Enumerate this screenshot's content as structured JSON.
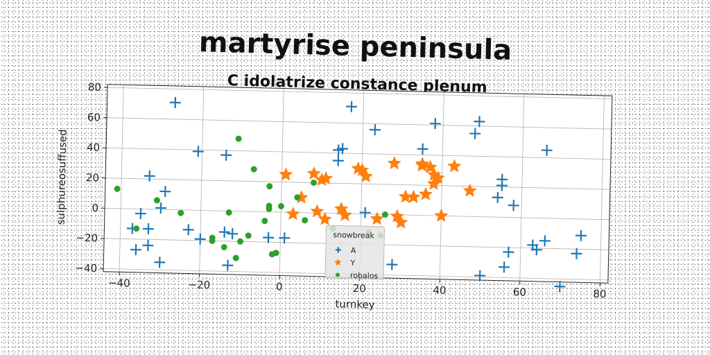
{
  "chart_data": {
    "type": "scatter",
    "title": "martyrise peninsula",
    "subtitle": "C idolatrize constance plenum",
    "xlabel": "turnkey",
    "ylabel": "sulphureosuffused",
    "xlim": [
      -44,
      82
    ],
    "ylim": [
      -42,
      82
    ],
    "xticks": [
      -40,
      -20,
      0,
      20,
      40,
      60,
      80
    ],
    "yticks": [
      -40,
      -20,
      0,
      20,
      40,
      60,
      80
    ],
    "grid": true,
    "legend": {
      "title": "snowbreak",
      "position": "lower-center"
    },
    "series": [
      {
        "name": "A",
        "marker": "plus",
        "color": "#1f77b4",
        "points": [
          [
            -27,
            71
          ],
          [
            -21,
            39
          ],
          [
            -14,
            37
          ],
          [
            -33,
            22
          ],
          [
            -29,
            12
          ],
          [
            -30,
            1
          ],
          [
            -35,
            -3
          ],
          [
            -33,
            -13
          ],
          [
            -37,
            -13
          ],
          [
            -33,
            -24
          ],
          [
            -36,
            -27
          ],
          [
            -30,
            -35
          ],
          [
            -23,
            -13
          ],
          [
            -20,
            -19
          ],
          [
            -14,
            -14
          ],
          [
            -12,
            -15
          ],
          [
            -13,
            -36
          ],
          [
            -3,
            -17
          ],
          [
            1,
            -17
          ],
          [
            14,
            42
          ],
          [
            15,
            43
          ],
          [
            14,
            35
          ],
          [
            17,
            71
          ],
          [
            21,
            1
          ],
          [
            23,
            56
          ],
          [
            28,
            -33
          ],
          [
            35,
            44
          ],
          [
            38,
            61
          ],
          [
            48,
            55
          ],
          [
            49,
            63
          ],
          [
            50,
            -39
          ],
          [
            54,
            13
          ],
          [
            55,
            25
          ],
          [
            55,
            21
          ],
          [
            58,
            8
          ],
          [
            57,
            -23
          ],
          [
            56,
            -33
          ],
          [
            63,
            -18
          ],
          [
            64,
            -21
          ],
          [
            66,
            -15
          ],
          [
            66,
            45
          ],
          [
            70,
            -45
          ],
          [
            75,
            -11
          ],
          [
            74,
            -23
          ]
        ]
      },
      {
        "name": "Y",
        "marker": "star",
        "color": "#ff7f0e",
        "points": [
          [
            1,
            25
          ],
          [
            3,
            -1
          ],
          [
            5,
            10
          ],
          [
            8,
            26
          ],
          [
            10,
            22
          ],
          [
            11,
            23
          ],
          [
            9,
            1
          ],
          [
            11,
            -4
          ],
          [
            15,
            3
          ],
          [
            16,
            -1
          ],
          [
            19,
            30
          ],
          [
            20,
            29
          ],
          [
            21,
            25
          ],
          [
            24,
            -3
          ],
          [
            28,
            34
          ],
          [
            29,
            -1
          ],
          [
            30,
            -5
          ],
          [
            31,
            12
          ],
          [
            33,
            12
          ],
          [
            35,
            34
          ],
          [
            35,
            33
          ],
          [
            36,
            14
          ],
          [
            37,
            32
          ],
          [
            38,
            27
          ],
          [
            38,
            21
          ],
          [
            39,
            25
          ],
          [
            40,
            0
          ],
          [
            43,
            33
          ],
          [
            47,
            17
          ]
        ]
      },
      {
        "name": "robalos",
        "marker": "circle",
        "color": "#2ca02c",
        "points": [
          [
            -41,
            13
          ],
          [
            -36,
            -13
          ],
          [
            -31,
            6
          ],
          [
            -25,
            -2
          ],
          [
            -13,
            -1
          ],
          [
            -11,
            48
          ],
          [
            -17,
            -18
          ],
          [
            -17,
            -20
          ],
          [
            -14,
            -24
          ],
          [
            -10,
            -20
          ],
          [
            -11,
            -31
          ],
          [
            -8,
            -16
          ],
          [
            -7,
            28
          ],
          [
            -3,
            17
          ],
          [
            -3,
            4
          ],
          [
            -3,
            2
          ],
          [
            -4,
            -6
          ],
          [
            0,
            4
          ],
          [
            -1,
            -27
          ],
          [
            -2,
            -28
          ],
          [
            4,
            10
          ],
          [
            6,
            -5
          ],
          [
            8,
            20
          ],
          [
            13,
            -10
          ],
          [
            22,
            -12
          ],
          [
            25,
            -14
          ],
          [
            26,
            0
          ]
        ]
      }
    ]
  }
}
